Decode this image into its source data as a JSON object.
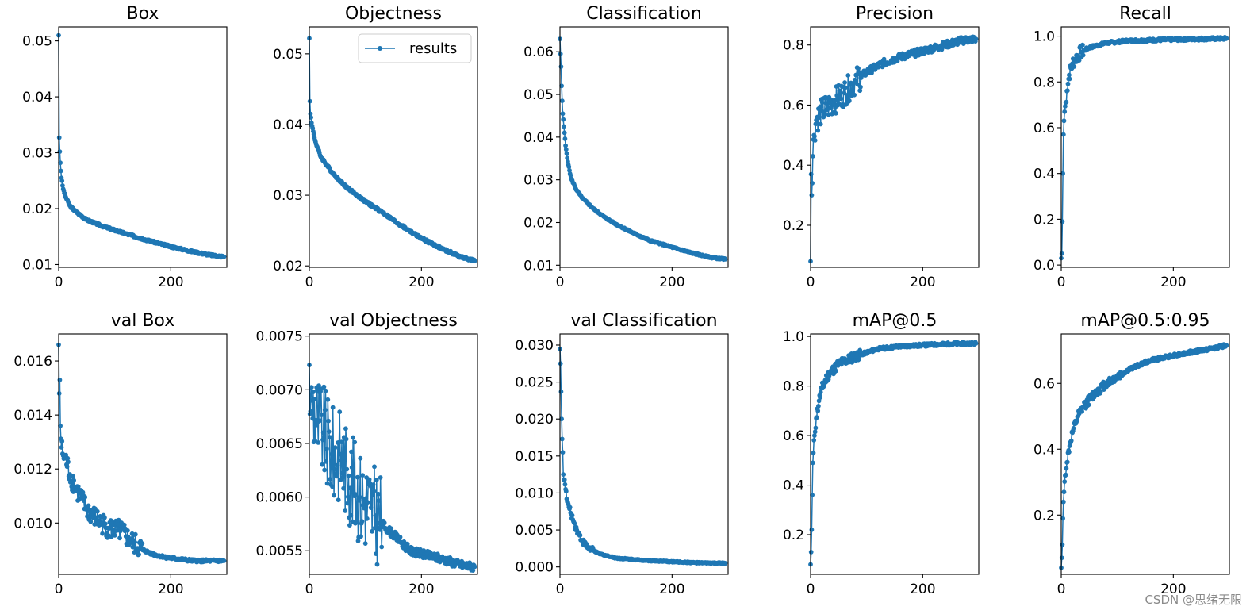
{
  "figure": {
    "legend_label": "results",
    "series_color": "#1f77b4",
    "watermark": "CSDN @思绪无限"
  },
  "chart_data": [
    {
      "type": "line",
      "title": "Box",
      "xlim": [
        0,
        300
      ],
      "xticks": [
        0,
        200
      ],
      "ylim": [
        0.0095,
        0.0525
      ],
      "yticks": [
        0.01,
        0.02,
        0.03,
        0.04,
        0.05
      ],
      "ytick_labels": [
        "0.01",
        "0.02",
        "0.03",
        "0.04",
        "0.05"
      ],
      "anchors": [
        [
          0,
          0.051
        ],
        [
          1,
          0.0327
        ],
        [
          2,
          0.0302
        ],
        [
          3,
          0.0282
        ],
        [
          5,
          0.0255
        ],
        [
          8,
          0.0235
        ],
        [
          12,
          0.0222
        ],
        [
          20,
          0.0205
        ],
        [
          30,
          0.0195
        ],
        [
          50,
          0.018
        ],
        [
          80,
          0.0168
        ],
        [
          120,
          0.0155
        ],
        [
          160,
          0.0143
        ],
        [
          200,
          0.0132
        ],
        [
          240,
          0.0123
        ],
        [
          270,
          0.0117
        ],
        [
          295,
          0.0114
        ]
      ],
      "noise": 0.00018
    },
    {
      "type": "line",
      "title": "Objectness",
      "legend": "results",
      "xlim": [
        0,
        300
      ],
      "xticks": [
        0,
        200
      ],
      "ylim": [
        0.0198,
        0.0538
      ],
      "yticks": [
        0.02,
        0.03,
        0.04,
        0.05
      ],
      "ytick_labels": [
        "0.02",
        "0.03",
        "0.04",
        "0.05"
      ],
      "anchors": [
        [
          0,
          0.0522
        ],
        [
          1,
          0.0433
        ],
        [
          2,
          0.0415
        ],
        [
          3,
          0.041
        ],
        [
          5,
          0.0398
        ],
        [
          10,
          0.0378
        ],
        [
          20,
          0.0355
        ],
        [
          40,
          0.0333
        ],
        [
          60,
          0.0316
        ],
        [
          80,
          0.0303
        ],
        [
          100,
          0.0291
        ],
        [
          130,
          0.0276
        ],
        [
          160,
          0.0259
        ],
        [
          200,
          0.0239
        ],
        [
          240,
          0.0223
        ],
        [
          270,
          0.0213
        ],
        [
          295,
          0.0207
        ]
      ],
      "noise": 0.00018
    },
    {
      "type": "line",
      "title": "Classification",
      "xlim": [
        0,
        300
      ],
      "xticks": [
        0,
        200
      ],
      "ylim": [
        0.0095,
        0.0658
      ],
      "yticks": [
        0.01,
        0.02,
        0.03,
        0.04,
        0.05,
        0.06
      ],
      "ytick_labels": [
        "0.01",
        "0.02",
        "0.03",
        "0.04",
        "0.05",
        "0.06"
      ],
      "anchors": [
        [
          0,
          0.063
        ],
        [
          1,
          0.0595
        ],
        [
          2,
          0.0565
        ],
        [
          3,
          0.052
        ],
        [
          4,
          0.0485
        ],
        [
          5,
          0.0455
        ],
        [
          7,
          0.0425
        ],
        [
          10,
          0.038
        ],
        [
          15,
          0.0335
        ],
        [
          20,
          0.0303
        ],
        [
          30,
          0.0275
        ],
        [
          40,
          0.0257
        ],
        [
          60,
          0.0232
        ],
        [
          80,
          0.0212
        ],
        [
          100,
          0.0196
        ],
        [
          130,
          0.0176
        ],
        [
          160,
          0.0158
        ],
        [
          200,
          0.0142
        ],
        [
          240,
          0.0127
        ],
        [
          270,
          0.0118
        ],
        [
          295,
          0.0114
        ]
      ],
      "noise": 0.00018
    },
    {
      "type": "line",
      "title": "Precision",
      "xlim": [
        0,
        300
      ],
      "xticks": [
        0,
        200
      ],
      "ylim": [
        0.06,
        0.86
      ],
      "yticks": [
        0.2,
        0.4,
        0.6,
        0.8
      ],
      "ytick_labels": [
        "0.2",
        "0.4",
        "0.6",
        "0.8"
      ],
      "anchors": [
        [
          0,
          0.08
        ],
        [
          1,
          0.37
        ],
        [
          2,
          0.3
        ],
        [
          3,
          0.34
        ],
        [
          4,
          0.43
        ],
        [
          6,
          0.5
        ],
        [
          10,
          0.55
        ],
        [
          20,
          0.58
        ],
        [
          40,
          0.61
        ],
        [
          60,
          0.64
        ],
        [
          80,
          0.68
        ],
        [
          100,
          0.71
        ],
        [
          130,
          0.74
        ],
        [
          160,
          0.76
        ],
        [
          200,
          0.78
        ],
        [
          240,
          0.8
        ],
        [
          270,
          0.815
        ],
        [
          295,
          0.82
        ]
      ],
      "noise": 0.012,
      "noise_until": 90,
      "noise_early": 0.045
    },
    {
      "type": "line",
      "title": "Recall",
      "xlim": [
        0,
        300
      ],
      "xticks": [
        0,
        200
      ],
      "ylim": [
        -0.01,
        1.04
      ],
      "yticks": [
        0.0,
        0.2,
        0.4,
        0.6,
        0.8,
        1.0
      ],
      "ytick_labels": [
        "0.0",
        "0.2",
        "0.4",
        "0.6",
        "0.8",
        "1.0"
      ],
      "anchors": [
        [
          0,
          0.03
        ],
        [
          1,
          0.05
        ],
        [
          2,
          0.19
        ],
        [
          3,
          0.4
        ],
        [
          4,
          0.57
        ],
        [
          5,
          0.63
        ],
        [
          6,
          0.67
        ],
        [
          8,
          0.71
        ],
        [
          10,
          0.76
        ],
        [
          14,
          0.83
        ],
        [
          20,
          0.88
        ],
        [
          25,
          0.9
        ],
        [
          35,
          0.93
        ],
        [
          50,
          0.95
        ],
        [
          80,
          0.97
        ],
        [
          120,
          0.98
        ],
        [
          200,
          0.985
        ],
        [
          295,
          0.99
        ]
      ],
      "noise": 0.006,
      "noise_until": 40,
      "noise_early": 0.03
    },
    {
      "type": "line",
      "title": "val Box",
      "xlim": [
        0,
        300
      ],
      "xticks": [
        0,
        200
      ],
      "ylim": [
        0.0081,
        0.017
      ],
      "yticks": [
        0.01,
        0.012,
        0.014,
        0.016
      ],
      "ytick_labels": [
        "0.010",
        "0.012",
        "0.014",
        "0.016"
      ],
      "anchors": [
        [
          0,
          0.0166
        ],
        [
          1,
          0.0148
        ],
        [
          2,
          0.0153
        ],
        [
          3,
          0.0136
        ],
        [
          5,
          0.0128
        ],
        [
          8,
          0.0125
        ],
        [
          12,
          0.0124
        ],
        [
          20,
          0.0118
        ],
        [
          30,
          0.0113
        ],
        [
          50,
          0.0105
        ],
        [
          70,
          0.0101
        ],
        [
          90,
          0.0098
        ],
        [
          110,
          0.0097
        ],
        [
          130,
          0.0093
        ],
        [
          150,
          0.009
        ],
        [
          175,
          0.0088
        ],
        [
          200,
          0.0087
        ],
        [
          240,
          0.0086
        ],
        [
          295,
          0.0086
        ]
      ],
      "noise": 5e-05,
      "noise_until": 150,
      "noise_early": 0.0004
    },
    {
      "type": "line",
      "title": "val Objectness",
      "xlim": [
        0,
        300
      ],
      "xticks": [
        0,
        200
      ],
      "ylim": [
        0.00528,
        0.00752
      ],
      "yticks": [
        0.0055,
        0.006,
        0.0065,
        0.007,
        0.0075
      ],
      "ytick_labels": [
        "0.0055",
        "0.0060",
        "0.0065",
        "0.0070",
        "0.0075"
      ],
      "anchors": [
        [
          0,
          0.00723
        ],
        [
          2,
          0.0068
        ],
        [
          5,
          0.0069
        ],
        [
          15,
          0.0067
        ],
        [
          25,
          0.0066
        ],
        [
          40,
          0.0064
        ],
        [
          55,
          0.0064
        ],
        [
          70,
          0.0062
        ],
        [
          90,
          0.006
        ],
        [
          110,
          0.0059
        ],
        [
          130,
          0.00575
        ],
        [
          140,
          0.0057
        ],
        [
          160,
          0.0056
        ],
        [
          180,
          0.0055
        ],
        [
          200,
          0.00547
        ],
        [
          240,
          0.00542
        ],
        [
          270,
          0.00537
        ],
        [
          295,
          0.00535
        ]
      ],
      "noise": 4e-05,
      "noise_until": 130,
      "noise_early": 0.00045
    },
    {
      "type": "line",
      "title": "val Classification",
      "xlim": [
        0,
        300
      ],
      "xticks": [
        0,
        200
      ],
      "ylim": [
        -0.001,
        0.0315
      ],
      "yticks": [
        0.0,
        0.005,
        0.01,
        0.015,
        0.02,
        0.025,
        0.03
      ],
      "ytick_labels": [
        "0.000",
        "0.005",
        "0.010",
        "0.015",
        "0.020",
        "0.025",
        "0.030"
      ],
      "anchors": [
        [
          0,
          0.0295
        ],
        [
          1,
          0.0275
        ],
        [
          2,
          0.0237
        ],
        [
          3,
          0.02
        ],
        [
          4,
          0.0173
        ],
        [
          5,
          0.0155
        ],
        [
          6,
          0.0125
        ],
        [
          8,
          0.0118
        ],
        [
          10,
          0.0105
        ],
        [
          13,
          0.0088
        ],
        [
          16,
          0.0081
        ],
        [
          20,
          0.0072
        ],
        [
          25,
          0.006
        ],
        [
          30,
          0.005
        ],
        [
          40,
          0.0035
        ],
        [
          50,
          0.0026
        ],
        [
          70,
          0.0018
        ],
        [
          100,
          0.0012
        ],
        [
          150,
          0.0009
        ],
        [
          200,
          0.0007
        ],
        [
          250,
          0.00055
        ],
        [
          295,
          0.0005
        ]
      ],
      "noise": 8e-05,
      "noise_until": 60,
      "noise_early": 0.0004
    },
    {
      "type": "line",
      "title": "mAP@0.5",
      "xlim": [
        0,
        300
      ],
      "xticks": [
        0,
        200
      ],
      "ylim": [
        0.04,
        1.01
      ],
      "yticks": [
        0.2,
        0.4,
        0.6,
        0.8,
        1.0
      ],
      "ytick_labels": [
        "0.2",
        "0.4",
        "0.6",
        "0.8",
        "1.0"
      ],
      "anchors": [
        [
          0,
          0.08
        ],
        [
          1,
          0.13
        ],
        [
          2,
          0.22
        ],
        [
          3,
          0.36
        ],
        [
          4,
          0.49
        ],
        [
          5,
          0.53
        ],
        [
          7,
          0.6
        ],
        [
          10,
          0.67
        ],
        [
          15,
          0.74
        ],
        [
          20,
          0.79
        ],
        [
          30,
          0.84
        ],
        [
          50,
          0.89
        ],
        [
          80,
          0.92
        ],
        [
          120,
          0.95
        ],
        [
          160,
          0.96
        ],
        [
          200,
          0.965
        ],
        [
          250,
          0.97
        ],
        [
          295,
          0.972
        ]
      ],
      "noise": 0.006,
      "noise_until": 90,
      "noise_early": 0.02
    },
    {
      "type": "line",
      "title": "mAP@0.5:0.95",
      "xlim": [
        0,
        300
      ],
      "xticks": [
        0,
        200
      ],
      "ylim": [
        0.02,
        0.75
      ],
      "yticks": [
        0.2,
        0.4,
        0.6
      ],
      "ytick_labels": [
        "0.2",
        "0.4",
        "0.6"
      ],
      "anchors": [
        [
          0,
          0.04
        ],
        [
          1,
          0.07
        ],
        [
          2,
          0.11
        ],
        [
          3,
          0.19
        ],
        [
          4,
          0.24
        ],
        [
          5,
          0.27
        ],
        [
          7,
          0.32
        ],
        [
          10,
          0.36
        ],
        [
          15,
          0.41
        ],
        [
          20,
          0.45
        ],
        [
          30,
          0.5
        ],
        [
          40,
          0.53
        ],
        [
          60,
          0.57
        ],
        [
          80,
          0.6
        ],
        [
          100,
          0.62
        ],
        [
          130,
          0.65
        ],
        [
          160,
          0.67
        ],
        [
          200,
          0.685
        ],
        [
          250,
          0.7
        ],
        [
          295,
          0.715
        ]
      ],
      "noise": 0.005,
      "noise_until": 110,
      "noise_early": 0.014
    }
  ]
}
